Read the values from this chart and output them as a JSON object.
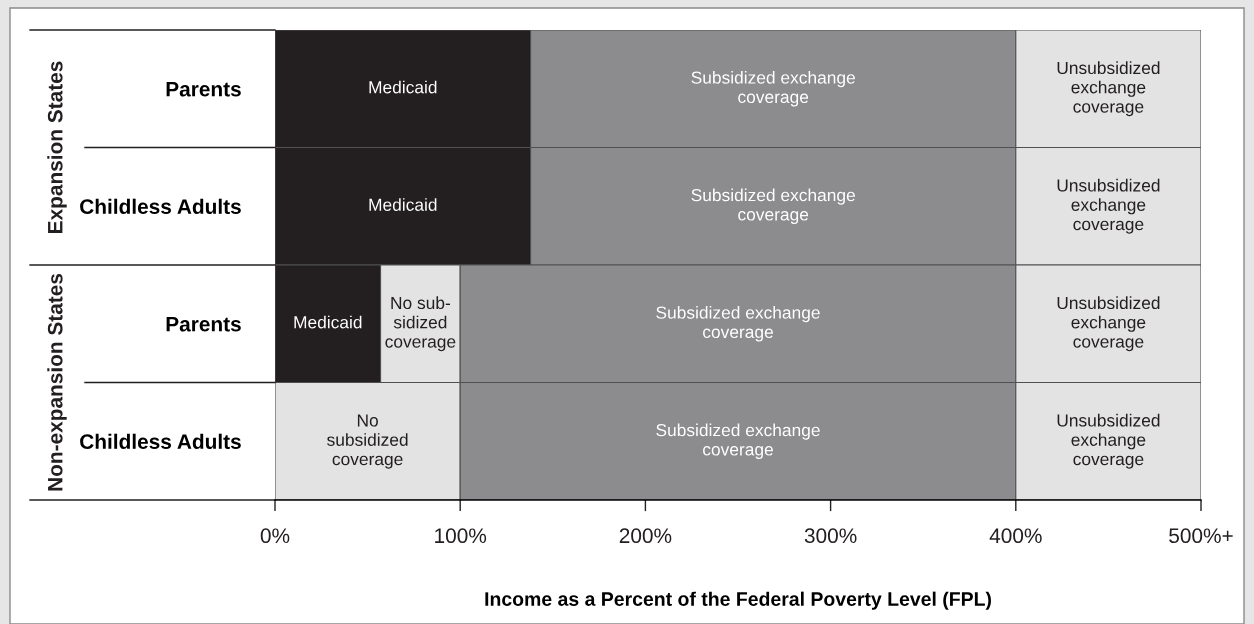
{
  "chart_data": {
    "type": "bar",
    "orientation": "horizontal",
    "stacked": true,
    "categories": [
      "Parents",
      "Childless Adults",
      "Parents",
      "Childless Adults"
    ],
    "annotations": [
      "Expansion States",
      "Non-expansion States"
    ],
    "xlabel": "Income as a Percent of the Federal Poverty Level (FPL)",
    "xlim": [
      0,
      500
    ],
    "xticks": [
      {
        "value": 0,
        "label": "0%"
      },
      {
        "value": 100,
        "label": "100%"
      },
      {
        "value": 200,
        "label": "200%"
      },
      {
        "value": 300,
        "label": "300%"
      },
      {
        "value": 400,
        "label": "400%"
      },
      {
        "value": 500,
        "label": "500%+"
      }
    ],
    "grid": false,
    "legend": false,
    "series": [
      {
        "color": "#231f20",
        "values": [
          138,
          138,
          57,
          0
        ],
        "value_labels": [
          "Medicaid",
          "Medicaid",
          "Medicaid",
          null
        ]
      },
      {
        "color": "#e3e3e4",
        "values": [
          0,
          0,
          43,
          100
        ],
        "value_labels": [
          null,
          null,
          "No sub-\nsidized\ncoverage",
          "No\nsubsidized\ncoverage"
        ]
      },
      {
        "color": "#8c8c8e",
        "values": [
          262,
          262,
          300,
          300
        ],
        "value_labels": [
          "Subsidized exchange\ncoverage",
          "Subsidized exchange\ncoverage",
          "Subsidized exchange\ncoverage",
          "Subsidized exchange\ncoverage"
        ]
      },
      {
        "color": "#e3e3e4",
        "values": [
          100,
          100,
          100,
          100
        ],
        "value_labels": [
          "Unsubsidized\nexchange\ncoverage",
          "Unsubsidized\nexchange\ncoverage",
          "Unsubsidized\nexchange\ncoverage",
          "Unsubsidized\nexchange\ncoverage"
        ]
      }
    ]
  }
}
